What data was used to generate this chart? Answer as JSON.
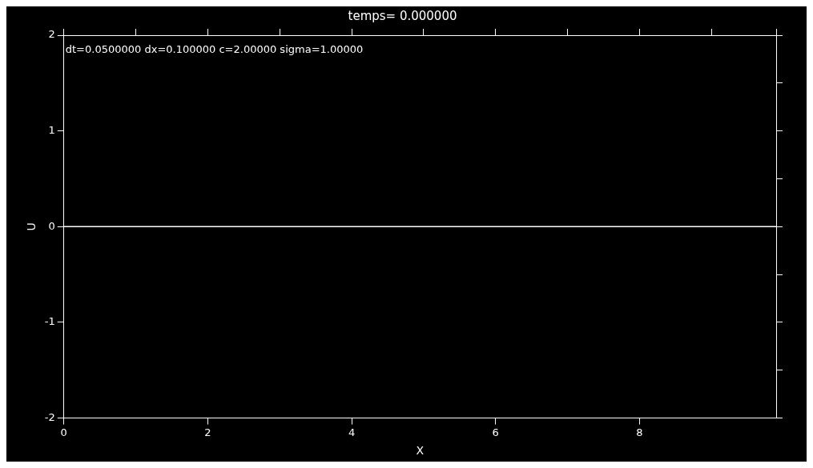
{
  "chart_data": {
    "type": "line",
    "title": "temps= 0.000000",
    "xlabel": "X",
    "ylabel": "U",
    "annotations": [
      "dt=0.0500000 dx=0.100000 c=2.00000 sigma=1.00000"
    ],
    "series": [
      {
        "color": "#ffffff",
        "x": [
          0,
          9.9
        ],
        "values": [
          0,
          0
        ]
      }
    ],
    "xlim": [
      0,
      9.9
    ],
    "xticks": [
      0,
      2,
      4,
      6,
      8
    ],
    "ylim": [
      -2,
      2
    ],
    "yticks": [
      -2,
      -1,
      0,
      1,
      2
    ],
    "grid": false,
    "legend": false,
    "marker": "none",
    "line_style": "solid"
  }
}
